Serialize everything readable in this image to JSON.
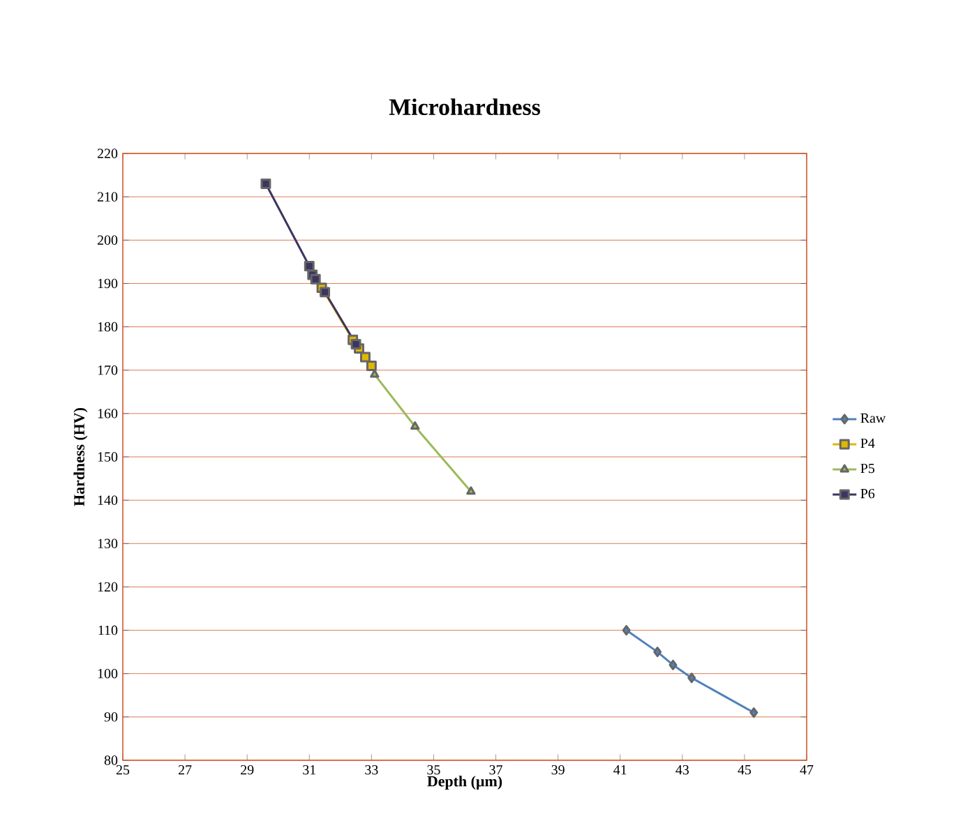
{
  "chart_data": {
    "type": "line",
    "title": "Microhardness",
    "xlabel": "Depth (µm)",
    "ylabel": "Hardness (HV)",
    "xlim": [
      25,
      47
    ],
    "xticks": [
      25,
      27,
      29,
      31,
      33,
      35,
      37,
      39,
      41,
      43,
      45,
      47
    ],
    "ylim": [
      80,
      220
    ],
    "yticks": [
      80,
      90,
      100,
      110,
      120,
      130,
      140,
      150,
      160,
      170,
      180,
      190,
      200,
      210,
      220
    ],
    "grid": "y",
    "legend": "right",
    "series": [
      {
        "name": "Raw",
        "color": "#4f81bd",
        "marker": "diamond",
        "x": [
          41.2,
          42.2,
          42.7,
          43.3,
          45.3
        ],
        "values": [
          110,
          105,
          102,
          99,
          91
        ]
      },
      {
        "name": "P4",
        "color": "#e0b800",
        "marker": "square",
        "x": [
          31.4,
          32.4,
          32.6,
          32.8,
          33.0
        ],
        "values": [
          189,
          177,
          175,
          173,
          171
        ]
      },
      {
        "name": "P5",
        "color": "#9bbb59",
        "marker": "triangle",
        "x": [
          33.1,
          34.4,
          36.2
        ],
        "values": [
          169,
          157,
          142
        ]
      },
      {
        "name": "P6",
        "color": "#3b3560",
        "marker": "square",
        "x": [
          29.6,
          31.0,
          31.1,
          31.2,
          31.5,
          32.5
        ],
        "values": [
          213,
          194,
          192,
          191,
          188,
          176
        ]
      }
    ]
  }
}
